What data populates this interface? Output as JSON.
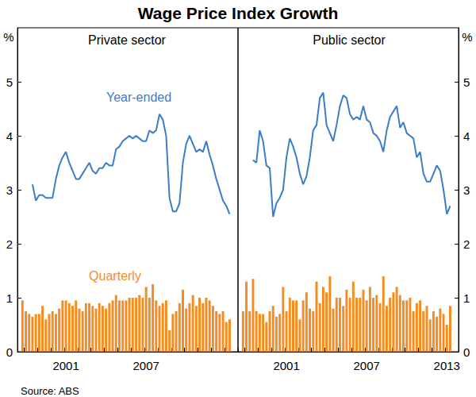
{
  "title": "Wage Price Index Growth",
  "source": "Source: ABS",
  "chart_data": [
    {
      "type": "line",
      "title": "Private sector",
      "y_label": "%",
      "categories": [
        null,
        null,
        null,
        null,
        null,
        null,
        null,
        null,
        null,
        null,
        null,
        null,
        null,
        null,
        "2001",
        null,
        null,
        null,
        null,
        null,
        null,
        null,
        null,
        null,
        null,
        null,
        null,
        null,
        null,
        null,
        null,
        null,
        null,
        null,
        null,
        null,
        null,
        null,
        "2007",
        null,
        null,
        null,
        null,
        null,
        null,
        null,
        null,
        null,
        null,
        null,
        null,
        null,
        null,
        null,
        null,
        null,
        null,
        null,
        null,
        null,
        null,
        null,
        null,
        null,
        null,
        null
      ],
      "ylim": [
        0,
        6
      ],
      "yticks": [
        0,
        1,
        2,
        3,
        4,
        5
      ],
      "grid": false,
      "series": [
        {
          "name": "Year-ended",
          "type": "line",
          "color": "#3a7dc9",
          "values": [
            null,
            null,
            null,
            null,
            3.1,
            2.8,
            2.9,
            2.9,
            2.85,
            2.85,
            2.85,
            3.2,
            3.45,
            3.6,
            3.7,
            3.5,
            3.35,
            3.2,
            3.2,
            3.3,
            3.4,
            3.5,
            3.35,
            3.3,
            3.4,
            3.4,
            3.5,
            3.45,
            3.45,
            3.75,
            3.8,
            3.9,
            3.95,
            4.0,
            3.95,
            4.0,
            3.95,
            3.9,
            3.9,
            4.1,
            4.05,
            4.1,
            4.4,
            4.3,
            4.0,
            2.85,
            2.6,
            2.6,
            2.75,
            3.5,
            3.85,
            4.0,
            3.85,
            3.7,
            3.75,
            3.7,
            3.9,
            3.65,
            3.45,
            3.2,
            3.0,
            2.8,
            2.7,
            2.55,
            null,
            null
          ]
        },
        {
          "name": "Quarterly",
          "type": "bar",
          "color": "#f68b1f",
          "values": [
            null,
            0.95,
            0.75,
            0.7,
            0.65,
            0.7,
            0.7,
            0.85,
            0.6,
            0.7,
            0.75,
            0.7,
            0.8,
            0.95,
            0.95,
            0.9,
            0.85,
            0.95,
            0.8,
            0.75,
            0.9,
            0.9,
            0.85,
            0.8,
            0.9,
            0.85,
            0.8,
            0.9,
            0.95,
            1.05,
            0.95,
            0.95,
            0.95,
            1.0,
            1.0,
            1.0,
            1.05,
            1.0,
            1.2,
            1.0,
            1.25,
            0.95,
            0.85,
            0.9,
            0.95,
            0.4,
            0.7,
            0.75,
            0.9,
            1.15,
            0.8,
            0.9,
            1.05,
            0.85,
            1.0,
            0.9,
            1.0,
            0.95,
            0.85,
            0.75,
            0.7,
            0.75,
            0.55,
            0.6,
            null,
            null
          ]
        }
      ]
    },
    {
      "type": "line",
      "title": "Public sector",
      "y_label": "%",
      "categories": [
        null,
        null,
        null,
        null,
        null,
        null,
        null,
        null,
        null,
        null,
        null,
        null,
        null,
        null,
        "2001",
        null,
        null,
        null,
        null,
        null,
        null,
        null,
        null,
        null,
        null,
        null,
        null,
        null,
        null,
        null,
        null,
        null,
        null,
        null,
        null,
        null,
        null,
        null,
        "2007",
        null,
        null,
        null,
        null,
        null,
        null,
        null,
        null,
        null,
        null,
        null,
        null,
        null,
        null,
        null,
        null,
        null,
        null,
        null,
        null,
        null,
        null,
        null,
        "2013",
        null,
        null,
        null
      ],
      "ylim": [
        0,
        6
      ],
      "yticks": [
        0,
        1,
        2,
        3,
        4,
        5
      ],
      "grid": false,
      "series": [
        {
          "type": "line",
          "color": "#3a7dc9",
          "values": [
            null,
            null,
            null,
            null,
            3.55,
            3.5,
            4.1,
            3.9,
            3.45,
            3.4,
            2.5,
            2.75,
            2.85,
            3.0,
            3.6,
            3.95,
            3.8,
            3.6,
            3.3,
            3.1,
            3.25,
            3.6,
            4.1,
            4.2,
            4.7,
            4.8,
            4.2,
            4.05,
            3.9,
            4.2,
            4.55,
            4.75,
            4.7,
            4.4,
            4.3,
            4.35,
            4.3,
            4.55,
            4.3,
            4.25,
            4.05,
            4.0,
            3.9,
            3.7,
            4.1,
            4.35,
            4.45,
            4.55,
            4.15,
            4.25,
            4.05,
            4.0,
            3.95,
            3.6,
            3.7,
            3.3,
            3.15,
            3.15,
            3.3,
            3.45,
            3.35,
            3.0,
            2.55,
            2.7,
            null,
            null
          ]
        },
        {
          "type": "bar",
          "color": "#f68b1f",
          "values": [
            null,
            0.75,
            1.3,
            0.75,
            1.35,
            0.75,
            0.7,
            0.7,
            0.55,
            0.75,
            0.85,
            0.65,
            0.7,
            1.2,
            0.75,
            1.0,
            0.95,
            0.95,
            0.6,
            0.95,
            1.1,
            0.8,
            0.75,
            1.3,
            0.9,
            1.2,
            1.1,
            1.4,
            0.8,
            1.0,
            1.0,
            0.85,
            1.15,
            1.0,
            1.3,
            1.0,
            1.0,
            1.15,
            0.95,
            1.2,
            1.0,
            1.05,
            0.9,
            1.4,
            0.85,
            1.0,
            1.1,
            1.2,
            1.05,
            0.95,
            0.95,
            1.0,
            0.75,
            0.9,
            0.95,
            0.75,
            0.85,
            0.6,
            0.75,
            0.65,
            0.8,
            0.7,
            0.5,
            0.85,
            null,
            null
          ]
        }
      ]
    }
  ]
}
